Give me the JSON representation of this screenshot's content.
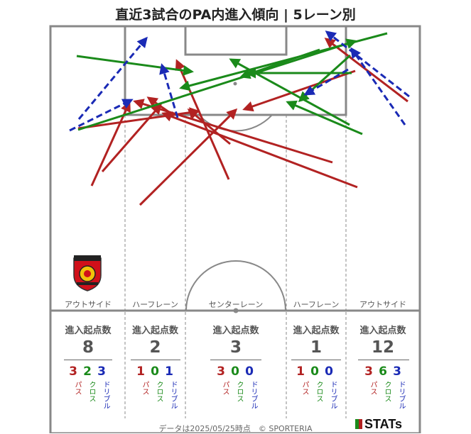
{
  "title": "直近3試合のPA内進入傾向 | 5レーン別",
  "lanes": [
    {
      "label": "アウトサイド",
      "head": "進入起点数",
      "total": "8",
      "pass": "3",
      "cross": "2",
      "dribble": "3"
    },
    {
      "label": "ハーフレーン",
      "head": "進入起点数",
      "total": "2",
      "pass": "1",
      "cross": "0",
      "dribble": "1"
    },
    {
      "label": "センターレーン",
      "head": "進入起点数",
      "total": "3",
      "pass": "3",
      "cross": "0",
      "dribble": "0"
    },
    {
      "label": "ハーフレーン",
      "head": "進入起点数",
      "total": "1",
      "pass": "1",
      "cross": "0",
      "dribble": "0"
    },
    {
      "label": "アウトサイド",
      "head": "進入起点数",
      "total": "12",
      "pass": "3",
      "cross": "6",
      "dribble": "3"
    }
  ],
  "type_labels": {
    "pass": "パス",
    "cross": "クロス",
    "dribble": "ドリブル"
  },
  "colors": {
    "pass": "#b22222",
    "cross": "#1a8a1a",
    "dribble": "#1a2ab5",
    "lines": "#888888"
  },
  "footnote": "データは2025/05/25時点　© SPORTERIA",
  "brand": "STATs",
  "logo": "urawa-reds-crest"
}
